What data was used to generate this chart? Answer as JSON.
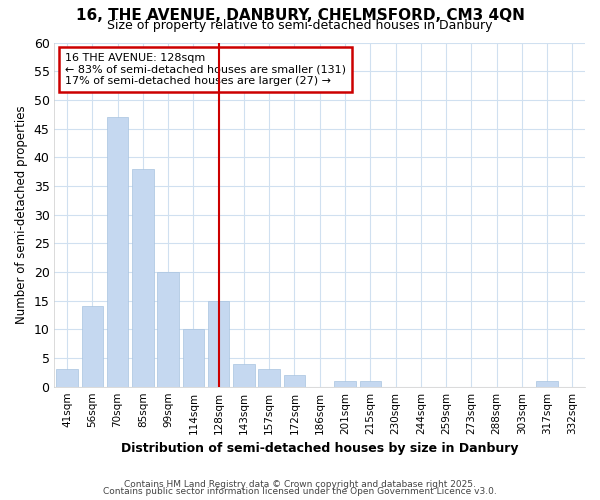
{
  "title1": "16, THE AVENUE, DANBURY, CHELMSFORD, CM3 4QN",
  "title2": "Size of property relative to semi-detached houses in Danbury",
  "xlabel": "Distribution of semi-detached houses by size in Danbury",
  "ylabel": "Number of semi-detached properties",
  "categories": [
    "41sqm",
    "56sqm",
    "70sqm",
    "85sqm",
    "99sqm",
    "114sqm",
    "128sqm",
    "143sqm",
    "157sqm",
    "172sqm",
    "186sqm",
    "201sqm",
    "215sqm",
    "230sqm",
    "244sqm",
    "259sqm",
    "273sqm",
    "288sqm",
    "303sqm",
    "317sqm",
    "332sqm"
  ],
  "values": [
    3,
    14,
    47,
    38,
    20,
    10,
    15,
    4,
    3,
    2,
    0,
    1,
    1,
    0,
    0,
    0,
    0,
    0,
    0,
    1,
    0
  ],
  "bar_color": "#c5d8f0",
  "bar_edge_color": "#a8c4e0",
  "highlight_index": 6,
  "highlight_line_color": "#cc0000",
  "annotation_line1": "16 THE AVENUE: 128sqm",
  "annotation_line2": "← 83% of semi-detached houses are smaller (131)",
  "annotation_line3": "17% of semi-detached houses are larger (27) →",
  "annotation_box_color": "#cc0000",
  "ylim": [
    0,
    60
  ],
  "yticks": [
    0,
    5,
    10,
    15,
    20,
    25,
    30,
    35,
    40,
    45,
    50,
    55,
    60
  ],
  "footer1": "Contains HM Land Registry data © Crown copyright and database right 2025.",
  "footer2": "Contains public sector information licensed under the Open Government Licence v3.0.",
  "bg_color": "#ffffff",
  "grid_color": "#d0e0f0"
}
